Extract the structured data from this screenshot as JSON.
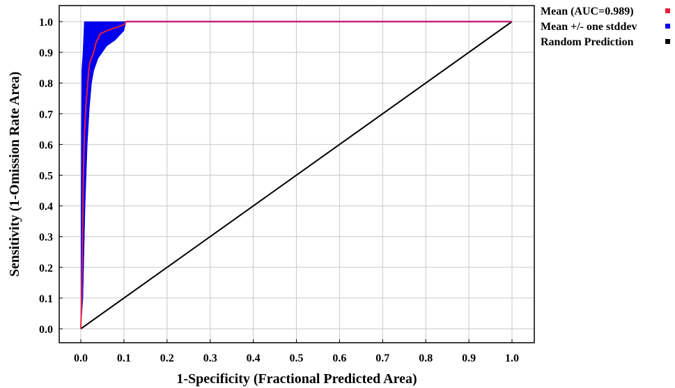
{
  "chart_data": {
    "type": "line",
    "title": "",
    "xlabel": "1-Specificity (Fractional Predicted Area)",
    "ylabel": "Sensitivity (1-Omission Rate Area)",
    "xlim": [
      0.0,
      1.0
    ],
    "ylim": [
      0.0,
      1.0
    ],
    "x_ticks": [
      "0.0",
      "0.1",
      "0.2",
      "0.3",
      "0.4",
      "0.5",
      "0.6",
      "0.7",
      "0.8",
      "0.9",
      "1.0"
    ],
    "y_ticks": [
      "0.0",
      "0.1",
      "0.2",
      "0.3",
      "0.4",
      "0.5",
      "0.6",
      "0.7",
      "0.8",
      "0.9",
      "1.0"
    ],
    "grid": true,
    "legend_position": "right",
    "series": [
      {
        "name": "Mean (AUC=0.989)",
        "color": "#e8203c",
        "points": [
          [
            0.0,
            0.0
          ],
          [
            0.002,
            0.1
          ],
          [
            0.004,
            0.3
          ],
          [
            0.006,
            0.5
          ],
          [
            0.008,
            0.62
          ],
          [
            0.012,
            0.73
          ],
          [
            0.016,
            0.8
          ],
          [
            0.02,
            0.86
          ],
          [
            0.024,
            0.88
          ],
          [
            0.03,
            0.9
          ],
          [
            0.035,
            0.93
          ],
          [
            0.045,
            0.96
          ],
          [
            0.06,
            0.97
          ],
          [
            0.08,
            0.98
          ],
          [
            0.1,
            0.99
          ],
          [
            0.105,
            1.0
          ],
          [
            1.0,
            1.0
          ]
        ]
      },
      {
        "name": "Mean +/- one stddev",
        "color": "#0000ee",
        "upper": [
          [
            0.0,
            0.0
          ],
          [
            0.001,
            0.55
          ],
          [
            0.002,
            0.84
          ],
          [
            0.005,
            0.9
          ],
          [
            0.008,
            1.0
          ],
          [
            1.0,
            1.0
          ]
        ],
        "lower": [
          [
            0.0,
            0.0
          ],
          [
            0.005,
            0.1
          ],
          [
            0.01,
            0.4
          ],
          [
            0.015,
            0.6
          ],
          [
            0.02,
            0.72
          ],
          [
            0.025,
            0.8
          ],
          [
            0.03,
            0.84
          ],
          [
            0.04,
            0.88
          ],
          [
            0.05,
            0.9
          ],
          [
            0.06,
            0.92
          ],
          [
            0.08,
            0.94
          ],
          [
            0.1,
            0.97
          ],
          [
            0.105,
            1.0
          ],
          [
            1.0,
            1.0
          ]
        ]
      },
      {
        "name": "Random Prediction",
        "color": "#000000",
        "points": [
          [
            0.0,
            0.0
          ],
          [
            1.0,
            1.0
          ]
        ]
      }
    ]
  }
}
